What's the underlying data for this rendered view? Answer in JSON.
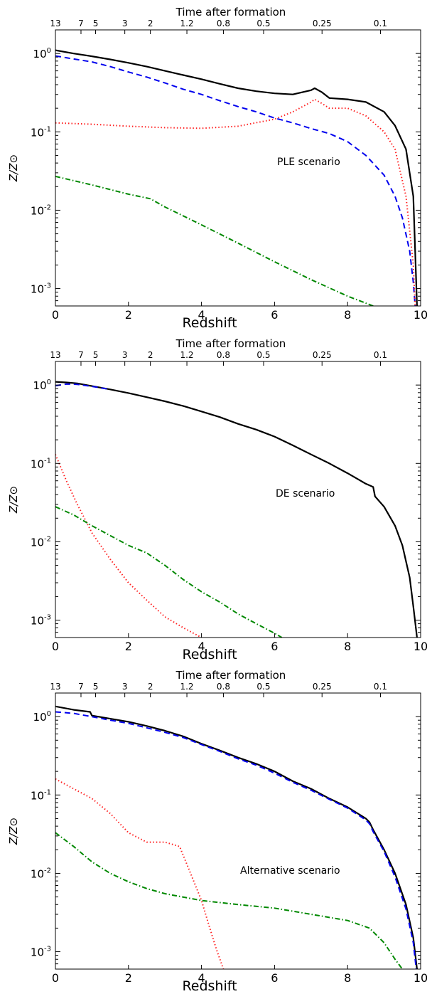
{
  "chart_data": [
    {
      "type": "line",
      "annotation": "PLE scenario",
      "xlabel": "Redshift",
      "ylabel": "Z/Z⊙",
      "top_axis_label": "Time after formation",
      "xlim": [
        0,
        10
      ],
      "ylim": [
        0.0006,
        2
      ],
      "yscale": "log",
      "x_ticks": [
        0,
        2,
        4,
        6,
        8,
        10
      ],
      "y_ticks": [
        {
          "value": 0.001,
          "base": "10",
          "exp": "-3"
        },
        {
          "value": 0.01,
          "base": "10",
          "exp": "-2"
        },
        {
          "value": 0.1,
          "base": "10",
          "exp": "-1"
        },
        {
          "value": 1,
          "base": "10",
          "exp": "0"
        }
      ],
      "top_ticks": [
        {
          "x": 0.0,
          "label": "13"
        },
        {
          "x": 0.7,
          "label": "7"
        },
        {
          "x": 1.1,
          "label": "5"
        },
        {
          "x": 1.9,
          "label": "3"
        },
        {
          "x": 2.6,
          "label": "2"
        },
        {
          "x": 3.6,
          "label": "1.2"
        },
        {
          "x": 4.6,
          "label": "0.8"
        },
        {
          "x": 5.7,
          "label": "0.5"
        },
        {
          "x": 7.3,
          "label": "0.25"
        },
        {
          "x": 8.9,
          "label": "0.1"
        }
      ],
      "series": [
        {
          "style": "solid",
          "color": "#000000",
          "x": [
            0,
            0.5,
            1,
            1.5,
            2,
            2.5,
            3,
            3.5,
            4,
            4.5,
            5,
            5.5,
            6,
            6.5,
            7,
            7.1,
            7.3,
            7.5,
            8,
            8.5,
            9,
            9.3,
            9.6,
            9.8,
            9.9
          ],
          "y": [
            1.1,
            1.0,
            0.92,
            0.84,
            0.76,
            0.68,
            0.6,
            0.53,
            0.47,
            0.41,
            0.36,
            0.33,
            0.31,
            0.3,
            0.34,
            0.36,
            0.32,
            0.27,
            0.26,
            0.24,
            0.18,
            0.12,
            0.06,
            0.015,
            0.0006
          ]
        },
        {
          "style": "dashed",
          "color": "#0000ee",
          "x": [
            0,
            0.5,
            1,
            1.5,
            2,
            2.5,
            3,
            3.5,
            4,
            4.5,
            5,
            5.5,
            6,
            6.5,
            7,
            7.5,
            8,
            8.5,
            9,
            9.3,
            9.5,
            9.7,
            9.8,
            9.85
          ],
          "y": [
            0.93,
            0.85,
            0.78,
            0.68,
            0.58,
            0.5,
            0.42,
            0.35,
            0.3,
            0.25,
            0.21,
            0.18,
            0.15,
            0.13,
            0.11,
            0.095,
            0.075,
            0.05,
            0.028,
            0.015,
            0.008,
            0.003,
            0.0012,
            0.0006
          ]
        },
        {
          "style": "dotted",
          "color": "#ff2020",
          "x": [
            0,
            1,
            2,
            3,
            4,
            5,
            6,
            6.5,
            7,
            7.1,
            7.3,
            7.5,
            8,
            8.5,
            9,
            9.3,
            9.6,
            9.8,
            9.85
          ],
          "y": [
            0.13,
            0.125,
            0.118,
            0.113,
            0.111,
            0.118,
            0.145,
            0.18,
            0.24,
            0.26,
            0.23,
            0.2,
            0.2,
            0.16,
            0.1,
            0.06,
            0.015,
            0.002,
            0.0006
          ]
        },
        {
          "style": "dashdot",
          "color": "#008800",
          "x": [
            0,
            1,
            2,
            2.6,
            3,
            4,
            5,
            6,
            7,
            8,
            8.7
          ],
          "y": [
            0.027,
            0.021,
            0.016,
            0.014,
            0.011,
            0.0065,
            0.0038,
            0.0022,
            0.0013,
            0.0008,
            0.0006
          ]
        }
      ]
    },
    {
      "type": "line",
      "annotation": "DE scenario",
      "xlabel": "Redshift",
      "ylabel": "Z/Z⊙",
      "top_axis_label": "Time after formation",
      "xlim": [
        0,
        10
      ],
      "ylim": [
        0.0006,
        2
      ],
      "yscale": "log",
      "x_ticks": [
        0,
        2,
        4,
        6,
        8,
        10
      ],
      "y_ticks": [
        {
          "value": 0.001,
          "base": "10",
          "exp": "-3"
        },
        {
          "value": 0.01,
          "base": "10",
          "exp": "-2"
        },
        {
          "value": 0.1,
          "base": "10",
          "exp": "-1"
        },
        {
          "value": 1,
          "base": "10",
          "exp": "0"
        }
      ],
      "top_ticks": [
        {
          "x": 0.0,
          "label": "13"
        },
        {
          "x": 0.7,
          "label": "7"
        },
        {
          "x": 1.1,
          "label": "5"
        },
        {
          "x": 1.9,
          "label": "3"
        },
        {
          "x": 2.6,
          "label": "2"
        },
        {
          "x": 3.6,
          "label": "1.2"
        },
        {
          "x": 4.6,
          "label": "0.8"
        },
        {
          "x": 5.7,
          "label": "0.5"
        },
        {
          "x": 7.3,
          "label": "0.25"
        },
        {
          "x": 8.9,
          "label": "0.1"
        }
      ],
      "series": [
        {
          "style": "solid",
          "color": "#000000",
          "x": [
            0,
            0.3,
            0.6,
            1,
            1.5,
            2,
            2.5,
            3,
            3.5,
            4,
            4.5,
            5,
            5.5,
            6,
            6.5,
            7,
            7.5,
            8,
            8.5,
            8.7,
            8.75,
            9,
            9.3,
            9.5,
            9.7,
            9.8,
            9.9
          ],
          "y": [
            1.1,
            1.08,
            1.05,
            0.97,
            0.88,
            0.79,
            0.7,
            0.62,
            0.54,
            0.46,
            0.39,
            0.32,
            0.27,
            0.22,
            0.17,
            0.13,
            0.1,
            0.075,
            0.055,
            0.05,
            0.038,
            0.028,
            0.016,
            0.009,
            0.0035,
            0.0015,
            0.0006
          ]
        },
        {
          "style": "dashed",
          "color": "#0000ee",
          "x": [
            0,
            0.3,
            0.6,
            1,
            1.5
          ],
          "y": [
            0.98,
            1.03,
            1.02,
            0.96,
            0.88
          ]
        },
        {
          "style": "dotted",
          "color": "#ff2020",
          "x": [
            0,
            0.3,
            0.6,
            1,
            1.5,
            2,
            2.5,
            3,
            3.5,
            4
          ],
          "y": [
            0.13,
            0.06,
            0.03,
            0.013,
            0.006,
            0.003,
            0.0018,
            0.0011,
            0.0008,
            0.0006
          ]
        },
        {
          "style": "dashdot",
          "color": "#008800",
          "x": [
            0,
            0.5,
            1,
            1.5,
            2,
            2.5,
            3,
            3.5,
            4,
            4.5,
            5,
            5.5,
            6,
            6.2
          ],
          "y": [
            0.028,
            0.022,
            0.016,
            0.012,
            0.009,
            0.0072,
            0.005,
            0.0033,
            0.0023,
            0.0017,
            0.0012,
            0.0009,
            0.00068,
            0.0006
          ]
        }
      ]
    },
    {
      "type": "line",
      "annotation": "Alternative scenario",
      "xlabel": "Redshift",
      "ylabel": "Z/Z⊙",
      "top_axis_label": "Time after formation",
      "xlim": [
        0,
        10
      ],
      "ylim": [
        0.0006,
        2
      ],
      "yscale": "log",
      "x_ticks": [
        0,
        2,
        4,
        6,
        8,
        10
      ],
      "y_ticks": [
        {
          "value": 0.001,
          "base": "10",
          "exp": "-3"
        },
        {
          "value": 0.01,
          "base": "10",
          "exp": "-2"
        },
        {
          "value": 0.1,
          "base": "10",
          "exp": "-1"
        },
        {
          "value": 1,
          "base": "10",
          "exp": "0"
        }
      ],
      "top_ticks": [
        {
          "x": 0.0,
          "label": "13"
        },
        {
          "x": 0.7,
          "label": "7"
        },
        {
          "x": 1.1,
          "label": "5"
        },
        {
          "x": 1.9,
          "label": "3"
        },
        {
          "x": 2.6,
          "label": "2"
        },
        {
          "x": 3.6,
          "label": "1.2"
        },
        {
          "x": 4.6,
          "label": "0.8"
        },
        {
          "x": 5.7,
          "label": "0.5"
        },
        {
          "x": 7.3,
          "label": "0.25"
        },
        {
          "x": 8.9,
          "label": "0.1"
        }
      ],
      "series": [
        {
          "style": "solid",
          "color": "#000000",
          "x": [
            0,
            0.5,
            0.95,
            1,
            1.5,
            2,
            2.5,
            3,
            3.5,
            4,
            4.5,
            5,
            5.5,
            6,
            6.5,
            7,
            7.5,
            8,
            8.5,
            8.6,
            8.7,
            9,
            9.3,
            9.6,
            9.8,
            9.9
          ],
          "y": [
            1.35,
            1.22,
            1.15,
            1.03,
            0.94,
            0.86,
            0.76,
            0.66,
            0.56,
            0.45,
            0.37,
            0.3,
            0.25,
            0.2,
            0.15,
            0.12,
            0.09,
            0.07,
            0.05,
            0.045,
            0.036,
            0.02,
            0.01,
            0.004,
            0.0015,
            0.0006
          ]
        },
        {
          "style": "dashed",
          "color": "#0000ee",
          "x": [
            0,
            0.5,
            1,
            1.5,
            2,
            2.5,
            3,
            3.5,
            4,
            4.5,
            5,
            5.5,
            6,
            6.5,
            7,
            7.5,
            8,
            8.5,
            8.6,
            8.7,
            9,
            9.3,
            9.6,
            9.8,
            9.88
          ],
          "y": [
            1.15,
            1.1,
            1.0,
            0.9,
            0.82,
            0.72,
            0.63,
            0.54,
            0.44,
            0.36,
            0.29,
            0.24,
            0.19,
            0.145,
            0.115,
            0.088,
            0.068,
            0.048,
            0.043,
            0.034,
            0.019,
            0.009,
            0.0035,
            0.0013,
            0.0006
          ]
        },
        {
          "style": "dotted",
          "color": "#ff2020",
          "x": [
            0,
            0.5,
            1,
            1.5,
            2,
            2.5,
            3,
            3.4,
            3.7,
            4,
            4.2,
            4.4,
            4.6
          ],
          "y": [
            0.16,
            0.12,
            0.09,
            0.058,
            0.033,
            0.025,
            0.025,
            0.022,
            0.01,
            0.0045,
            0.0022,
            0.0011,
            0.0006
          ]
        },
        {
          "style": "dashdot",
          "color": "#008800",
          "x": [
            0,
            0.5,
            1,
            1.5,
            2,
            2.5,
            3,
            4,
            5,
            6,
            7,
            8,
            8.6,
            9,
            9.3,
            9.5
          ],
          "y": [
            0.033,
            0.022,
            0.014,
            0.01,
            0.0078,
            0.0064,
            0.0055,
            0.0045,
            0.004,
            0.0036,
            0.003,
            0.0025,
            0.002,
            0.0013,
            0.0008,
            0.0006
          ]
        }
      ]
    }
  ]
}
